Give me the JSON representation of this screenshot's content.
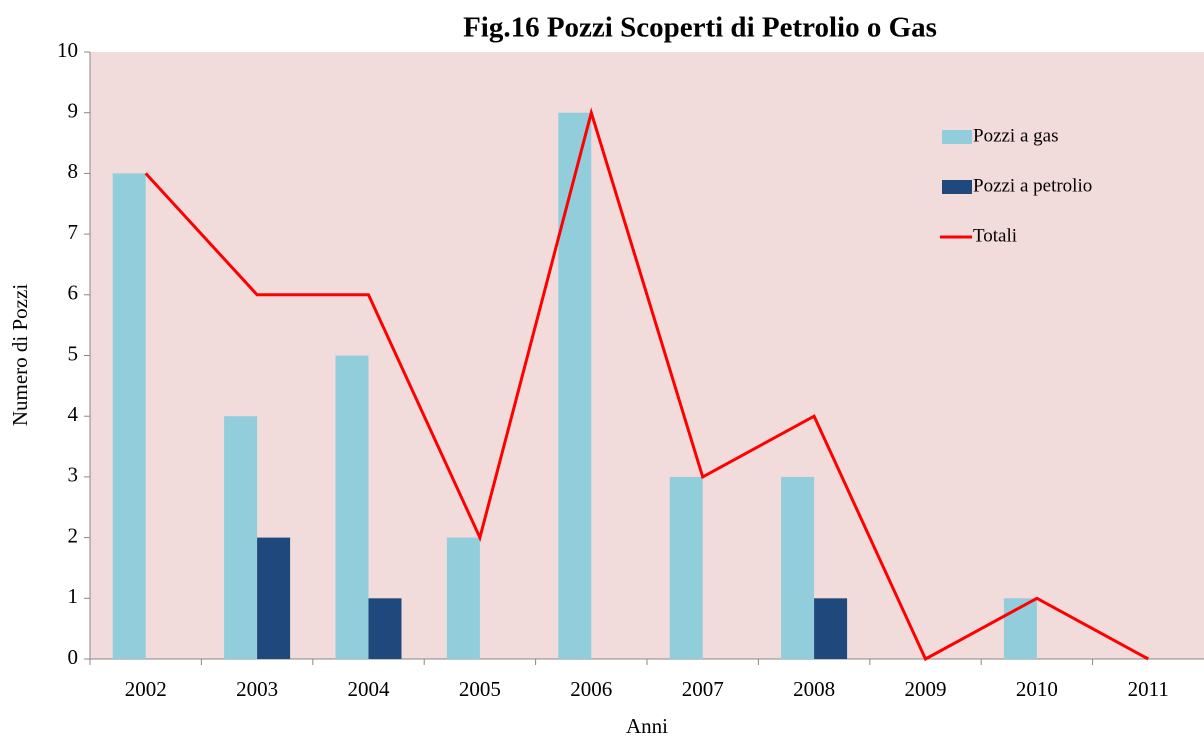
{
  "chart_data": {
    "type": "bar",
    "title": "Fig.16 Pozzi Scoperti di Petrolio o Gas",
    "x_label": "Anni",
    "y_label": "Numero di Pozzi",
    "categories": [
      "2002",
      "2003",
      "2004",
      "2005",
      "2006",
      "2007",
      "2008",
      "2009",
      "2010",
      "2011"
    ],
    "series": [
      {
        "name": "Pozzi a gas",
        "type": "bar",
        "color": "#92cddc",
        "values": [
          8,
          4,
          5,
          2,
          9,
          3,
          3,
          0,
          1,
          0
        ]
      },
      {
        "name": "Pozzi a petrolio",
        "type": "bar",
        "color": "#1f497d",
        "values": [
          0,
          2,
          1,
          0,
          0,
          0,
          1,
          0,
          0,
          0
        ]
      },
      {
        "name": "Totali",
        "type": "line",
        "color": "#ff0000",
        "values": [
          8,
          6,
          6,
          2,
          9,
          3,
          4,
          0,
          1,
          0
        ]
      }
    ],
    "ylim": [
      0,
      10
    ],
    "yticks": [
      0,
      1,
      2,
      3,
      4,
      5,
      6,
      7,
      8,
      9,
      10
    ],
    "legend": "right",
    "background": "#f2dcdb"
  }
}
